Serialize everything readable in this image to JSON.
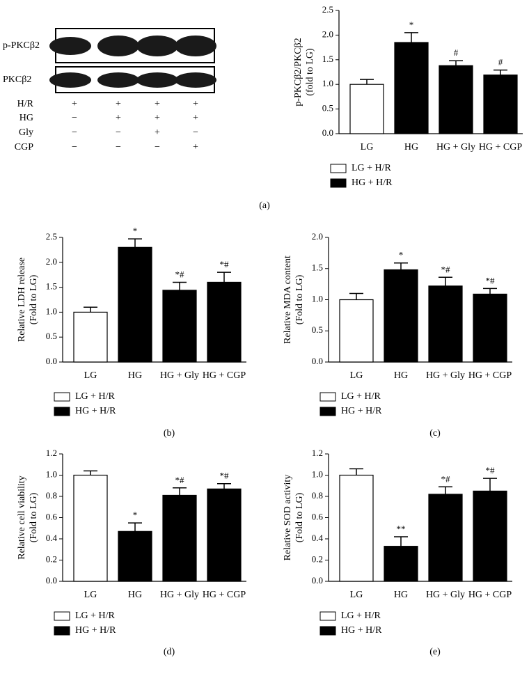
{
  "blot": {
    "bands": [
      "p-PKCβ2",
      "PKCβ2"
    ],
    "rows": [
      {
        "label": "H/R",
        "signs": [
          "+",
          "+",
          "+",
          "+"
        ]
      },
      {
        "label": "HG",
        "signs": [
          "−",
          "+",
          "+",
          "+"
        ]
      },
      {
        "label": "Gly",
        "signs": [
          "−",
          "−",
          "+",
          "−"
        ]
      },
      {
        "label": "CGP",
        "signs": [
          "−",
          "−",
          "−",
          "+"
        ]
      }
    ]
  },
  "chart_data": [
    {
      "type": "bar",
      "panel_label": "(a)",
      "ylabel": [
        "p-PKCβ2/PKCβ2",
        "(fold to LG)"
      ],
      "categories": [
        "LG",
        "HG",
        "HG + Gly",
        "HG + CGP"
      ],
      "values": [
        1.0,
        1.85,
        1.38,
        1.19
      ],
      "errors": [
        0.1,
        0.2,
        0.1,
        0.1
      ],
      "annotations": [
        null,
        "*",
        "#",
        "#"
      ],
      "colors": [
        "#ffffff",
        "#000000",
        "#000000",
        "#000000"
      ],
      "legend": [
        {
          "label": "LG + H/R",
          "color": "#ffffff"
        },
        {
          "label": "HG + H/R",
          "color": "#000000"
        }
      ],
      "ylim": [
        0,
        2.5
      ],
      "yticks": [
        {
          "value": 0,
          "label": "0.0"
        },
        {
          "value": 0.5,
          "label": "0.5"
        },
        {
          "value": 1,
          "label": "1.0"
        },
        {
          "value": 1.5,
          "label": "1.5"
        },
        {
          "value": 2,
          "label": "2.0"
        },
        {
          "value": 2.5,
          "label": "2.5"
        }
      ]
    },
    {
      "type": "bar",
      "panel_label": "(b)",
      "ylabel": [
        "Relative LDH release",
        "(Fold to LG)"
      ],
      "categories": [
        "LG",
        "HG",
        "HG + Gly",
        "HG + CGP"
      ],
      "values": [
        1.0,
        2.3,
        1.44,
        1.6
      ],
      "errors": [
        0.1,
        0.17,
        0.16,
        0.2
      ],
      "annotations": [
        null,
        "*",
        "*#",
        "*#"
      ],
      "colors": [
        "#ffffff",
        "#000000",
        "#000000",
        "#000000"
      ],
      "legend": [
        {
          "label": "LG + H/R",
          "color": "#ffffff"
        },
        {
          "label": "HG + H/R",
          "color": "#000000"
        }
      ],
      "ylim": [
        0,
        2.5
      ],
      "yticks": [
        {
          "value": 0,
          "label": "0.0"
        },
        {
          "value": 0.5,
          "label": "0.5"
        },
        {
          "value": 1,
          "label": "1.0"
        },
        {
          "value": 1.5,
          "label": "1.5"
        },
        {
          "value": 2,
          "label": "2.0"
        },
        {
          "value": 2.5,
          "label": "2.5"
        }
      ]
    },
    {
      "type": "bar",
      "panel_label": "(c)",
      "ylabel": [
        "Relative MDA content",
        "(Fold to LG)"
      ],
      "categories": [
        "LG",
        "HG",
        "HG + Gly",
        "HG + CGP"
      ],
      "values": [
        1.0,
        1.48,
        1.22,
        1.09
      ],
      "errors": [
        0.1,
        0.11,
        0.14,
        0.09
      ],
      "annotations": [
        null,
        "*",
        "*#",
        "*#"
      ],
      "colors": [
        "#ffffff",
        "#000000",
        "#000000",
        "#000000"
      ],
      "legend": [
        {
          "label": "LG + H/R",
          "color": "#ffffff"
        },
        {
          "label": "HG + H/R",
          "color": "#000000"
        }
      ],
      "ylim": [
        0,
        2.0
      ],
      "yticks": [
        {
          "value": 0,
          "label": "0.0"
        },
        {
          "value": 0.5,
          "label": "0.5"
        },
        {
          "value": 1,
          "label": "1.0"
        },
        {
          "value": 1.5,
          "label": "1.5"
        },
        {
          "value": 2,
          "label": "2.0"
        }
      ]
    },
    {
      "type": "bar",
      "panel_label": "(d)",
      "ylabel": [
        "Relative cell viability",
        "(Fold to LG)"
      ],
      "categories": [
        "LG",
        "HG",
        "HG + Gly",
        "HG + CGP"
      ],
      "values": [
        1.0,
        0.47,
        0.81,
        0.87
      ],
      "errors": [
        0.04,
        0.08,
        0.07,
        0.05
      ],
      "annotations": [
        null,
        "*",
        "*#",
        "*#"
      ],
      "colors": [
        "#ffffff",
        "#000000",
        "#000000",
        "#000000"
      ],
      "legend": [
        {
          "label": "LG + H/R",
          "color": "#ffffff"
        },
        {
          "label": "HG + H/R",
          "color": "#000000"
        }
      ],
      "ylim": [
        0,
        1.2
      ],
      "yticks": [
        {
          "value": 0,
          "label": "0.0"
        },
        {
          "value": 0.2,
          "label": "0.2"
        },
        {
          "value": 0.4,
          "label": "0.4"
        },
        {
          "value": 0.6,
          "label": "0.6"
        },
        {
          "value": 0.8,
          "label": "0.8"
        },
        {
          "value": 1,
          "label": "1.0"
        },
        {
          "value": 1.2,
          "label": "1.2"
        }
      ]
    },
    {
      "type": "bar",
      "panel_label": "(e)",
      "ylabel": [
        "Relative SOD activity",
        "(Fold to LG)"
      ],
      "categories": [
        "LG",
        "HG",
        "HG + Gly",
        "HG + CGP"
      ],
      "values": [
        1.0,
        0.33,
        0.82,
        0.85
      ],
      "errors": [
        0.06,
        0.09,
        0.07,
        0.12
      ],
      "annotations": [
        null,
        "**",
        "*#",
        "*#"
      ],
      "colors": [
        "#ffffff",
        "#000000",
        "#000000",
        "#000000"
      ],
      "legend": [
        {
          "label": "LG + H/R",
          "color": "#ffffff"
        },
        {
          "label": "HG + H/R",
          "color": "#000000"
        }
      ],
      "ylim": [
        0,
        1.2
      ],
      "yticks": [
        {
          "value": 0,
          "label": "0.0"
        },
        {
          "value": 0.2,
          "label": "0.2"
        },
        {
          "value": 0.4,
          "label": "0.4"
        },
        {
          "value": 0.6,
          "label": "0.6"
        },
        {
          "value": 0.8,
          "label": "0.8"
        },
        {
          "value": 1,
          "label": "1.0"
        },
        {
          "value": 1.2,
          "label": "1.2"
        }
      ]
    }
  ]
}
